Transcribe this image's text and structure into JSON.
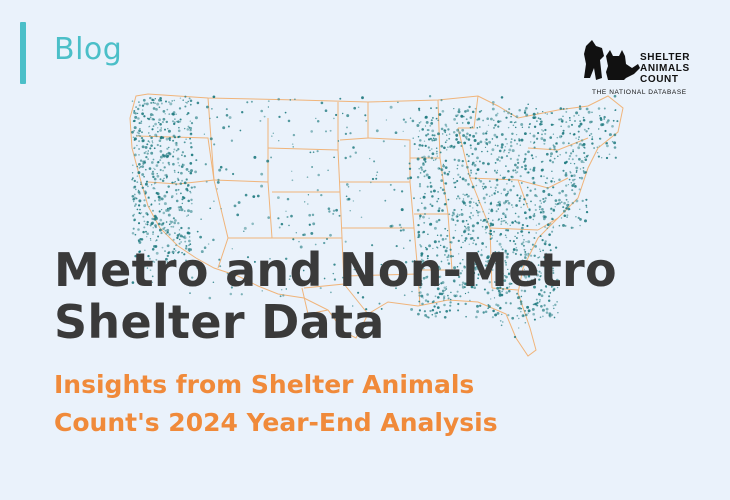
{
  "section_label": "Blog",
  "logo": {
    "line1": "SHELTER",
    "line2": "ANIMALS",
    "line3": "COUNT",
    "tagline": "THE NATIONAL DATABASE",
    "icon": "dog-and-cat-silhouette-icon"
  },
  "headline": {
    "line1": "Metro and Non-Metro",
    "line2": "Shelter Data"
  },
  "subheadline": {
    "line1": "Insights from Shelter Animals",
    "line2": "Count's 2024 Year-End Analysis"
  },
  "map": {
    "description_icon": "us-map-icon",
    "dot_color": "#1f7a7f",
    "border_color": "#f0b47a"
  },
  "colors": {
    "background": "#eaf2fb",
    "accent": "#4bbfc8",
    "headline": "#3a3a3a",
    "subheadline": "#f08a3a"
  }
}
